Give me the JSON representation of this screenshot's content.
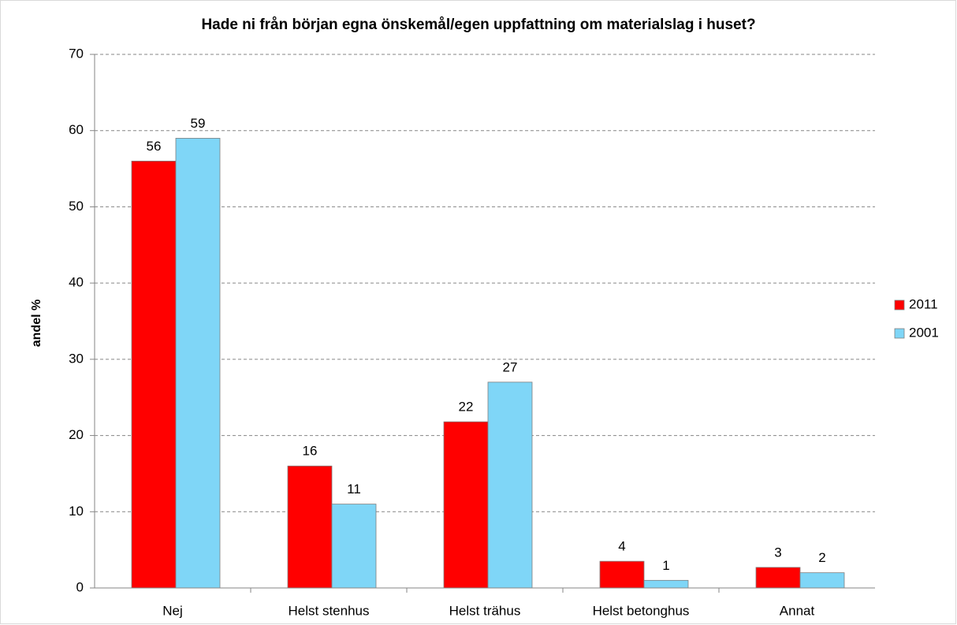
{
  "chart_data": {
    "type": "bar",
    "title": "Hade ni från början egna önskemål/egen uppfattning om materialslag i huset?",
    "y_label": "andel %",
    "categories": [
      "Nej",
      "Helst stenhus",
      "Helst trähus",
      "Helst betonghus",
      "Annat"
    ],
    "series": [
      {
        "name": "2011",
        "color": "#ff0000",
        "values": [
          56,
          16,
          21.8,
          3.5,
          2.7
        ],
        "value_labels": [
          "56",
          "16",
          "22",
          "4",
          "3"
        ]
      },
      {
        "name": "2001",
        "color": "#7fd6f7",
        "values": [
          59,
          11,
          27,
          1,
          2
        ]
      }
    ],
    "ylim": [
      0,
      70
    ],
    "yticks": [
      0,
      10,
      20,
      30,
      40,
      50,
      60,
      70
    ],
    "grid": true,
    "legend": "right"
  }
}
